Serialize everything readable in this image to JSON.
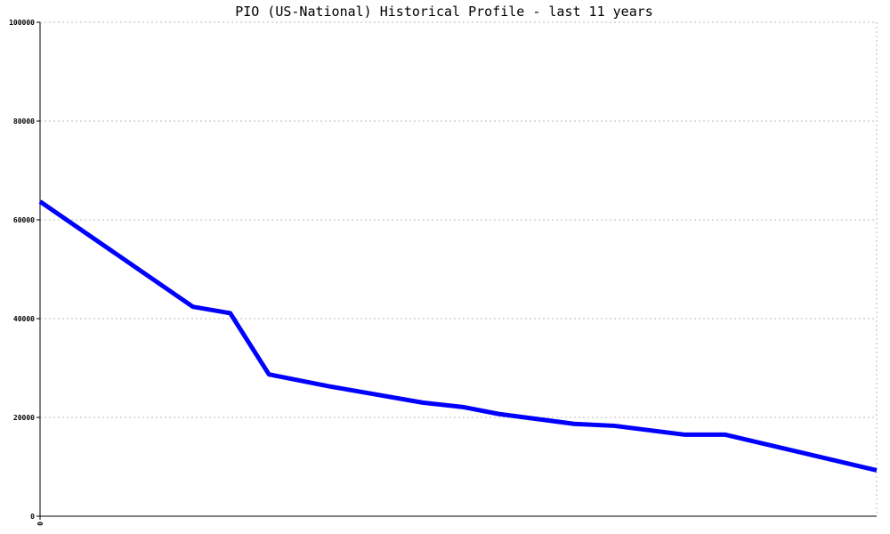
{
  "chart_data": {
    "type": "line",
    "title": "PIO (US-National) Historical Profile - last 11 years",
    "x": [
      0,
      2.01,
      2.5,
      3.01,
      3.8,
      5.03,
      5.56,
      6.03,
      7.02,
      7.55,
      8.48,
      9.01,
      11
    ],
    "series": [
      {
        "color": "#0000ff",
        "values": [
          63700,
          42400,
          41100,
          28700,
          26300,
          23000,
          22100,
          20700,
          18700,
          18300,
          16500,
          16500,
          9300
        ]
      }
    ],
    "xlim": [
      0,
      11
    ],
    "xticks": [
      0
    ],
    "ylim": [
      0,
      100000
    ],
    "yticks": [
      0,
      20000,
      40000,
      60000,
      80000,
      100000
    ],
    "grid": true
  }
}
